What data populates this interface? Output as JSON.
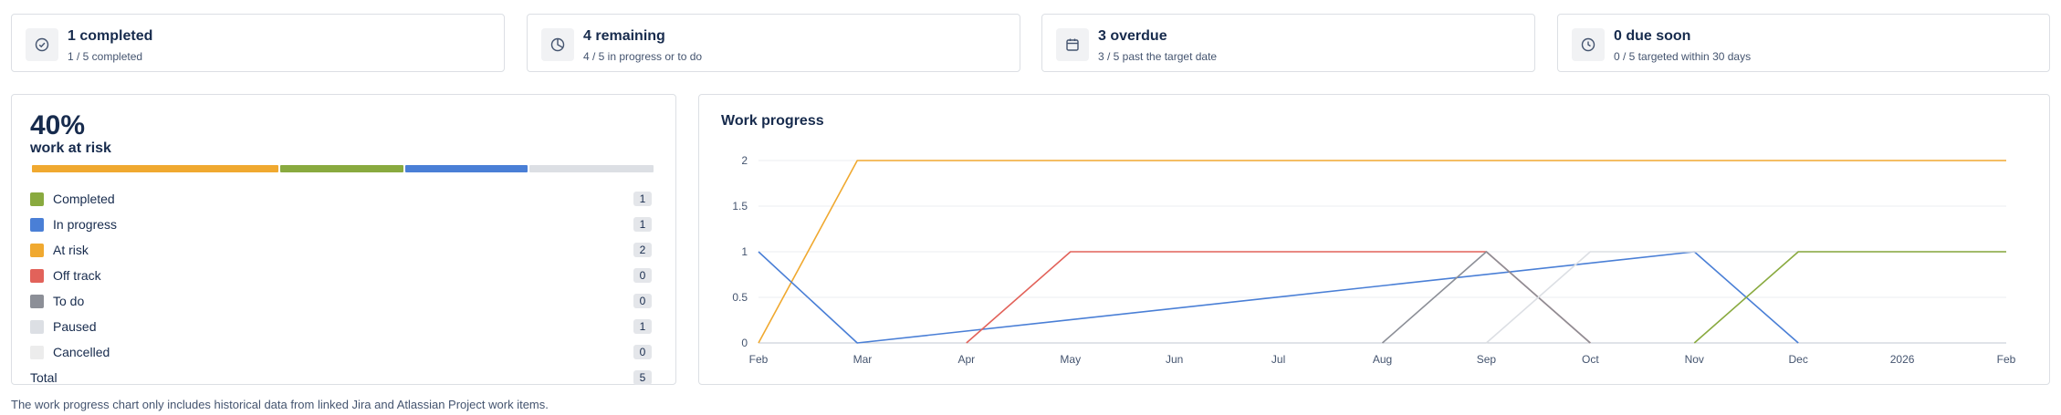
{
  "stats": [
    {
      "title": "1 completed",
      "sub": "1 / 5 completed",
      "icon": "check-circle-icon"
    },
    {
      "title": "4 remaining",
      "sub": "4 / 5 in progress or to do",
      "icon": "pie-chart-icon"
    },
    {
      "title": "3 overdue",
      "sub": "3 / 5 past the target date",
      "icon": "calendar-icon"
    },
    {
      "title": "0 due soon",
      "sub": "0 / 5 targeted within 30 days",
      "icon": "clock-icon"
    }
  ],
  "risk": {
    "percent": "40%",
    "label": "work at risk",
    "segments": [
      {
        "status": "At risk",
        "count": 2,
        "color": "#f0a930"
      },
      {
        "status": "Completed",
        "count": 1,
        "color": "#89aa3f"
      },
      {
        "status": "In progress",
        "count": 1,
        "color": "#4a7fd6"
      },
      {
        "status": "Paused",
        "count": 1,
        "color": "#dcdfe4"
      }
    ]
  },
  "legend": [
    {
      "label": "Completed",
      "count": "1",
      "color": "#89aa3f"
    },
    {
      "label": "In progress",
      "count": "1",
      "color": "#4a7fd6"
    },
    {
      "label": "At risk",
      "count": "2",
      "color": "#f0a930"
    },
    {
      "label": "Off track",
      "count": "0",
      "color": "#e2625a"
    },
    {
      "label": "To do",
      "count": "0",
      "color": "#8c8f97"
    },
    {
      "label": "Paused",
      "count": "1",
      "color": "#dcdfe4"
    },
    {
      "label": "Cancelled",
      "count": "0",
      "color": "#ececec"
    }
  ],
  "total": {
    "label": "Total",
    "count": "5"
  },
  "chart_data": {
    "type": "line",
    "title": "Work progress",
    "x": [
      "Feb",
      "Mar",
      "Apr",
      "May",
      "Jun",
      "Jul",
      "Aug",
      "Sep",
      "Oct",
      "Nov",
      "Dec",
      "2026",
      "Feb"
    ],
    "ylim": [
      0,
      2
    ],
    "yticks": [
      "0",
      "0.5",
      "1",
      "1.5",
      "2"
    ],
    "grid": true,
    "series": [
      {
        "status": "At risk",
        "color": "#f0a930",
        "points": [
          [
            0,
            0
          ],
          [
            0.95,
            2
          ],
          [
            12,
            2
          ]
        ]
      },
      {
        "status": "In progress",
        "color": "#4a7fd6",
        "points": [
          [
            0,
            1
          ],
          [
            0.95,
            0
          ],
          [
            9,
            1
          ],
          [
            10,
            0
          ]
        ]
      },
      {
        "status": "Off track",
        "color": "#e2625a",
        "points": [
          [
            2,
            0
          ],
          [
            3,
            1
          ],
          [
            7,
            1
          ],
          [
            8,
            0
          ]
        ]
      },
      {
        "status": "To do",
        "color": "#8c8f97",
        "points": [
          [
            6,
            0
          ],
          [
            7,
            1
          ],
          [
            8,
            0
          ]
        ]
      },
      {
        "status": "Paused",
        "color": "#dcdfe4",
        "points": [
          [
            7,
            0
          ],
          [
            8,
            1
          ],
          [
            12,
            1
          ]
        ]
      },
      {
        "status": "Completed",
        "color": "#89aa3f",
        "points": [
          [
            9,
            0
          ],
          [
            10,
            1
          ],
          [
            12,
            1
          ]
        ]
      }
    ]
  },
  "footnote": "The work progress chart only includes historical data from linked Jira and Atlassian Project work items."
}
